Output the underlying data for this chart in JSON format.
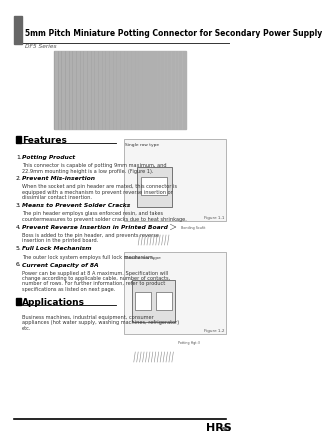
{
  "title": "5mm Pitch Miniature Potting Connector for Secondary Power Supply",
  "series": "DF5 Series",
  "features_title": "Features",
  "features": [
    {
      "heading": "Potting Product",
      "body": "This connector is capable of potting 9mm maximum, and\n22.9mm mounting height is a low profile. (Figure 1)."
    },
    {
      "heading": "Prevent Mis-insertion",
      "body": "When the socket and pin header are mated, this connector is\nequipped with a mechanism to prevent reverse insertion or\ndissimilar contact insertion."
    },
    {
      "heading": "Means to Prevent Solder Cracks",
      "body": "The pin header employs glass enforced resin, and takes\ncountermeasures to prevent solder cracks due to heat shrinkage."
    },
    {
      "heading": "Prevent Reverse Insertion in Printed Board",
      "body": "Boss is added to the pin header, and prevents reverse\ninsertion in the printed board."
    },
    {
      "heading": "Full Lock Mechanism",
      "body": "The outer lock system employs full lock mechanism."
    },
    {
      "heading": "Current Capacity of 8A",
      "body": "Power can be supplied at 8 A maximum. Specification will\nchange according to applicable cable, number of contacts,\nnumber of rows. For further information, refer to product\nspecifications as listed on next page."
    }
  ],
  "applications_title": "Applications",
  "applications_body": "Business machines, industrial equipment, consumer\nappliances (hot water supply, washing machines, refrigerator)\netc.",
  "figure1_label": "Single row type",
  "figure1_caption": "Figure 1-1",
  "figure2_label": "Double row type",
  "figure2_caption": "Figure 1-2",
  "footer_brand": "HRS",
  "footer_page": "B85",
  "bg_color": "#ffffff",
  "header_bar_color": "#666666",
  "accent_color": "#000000"
}
